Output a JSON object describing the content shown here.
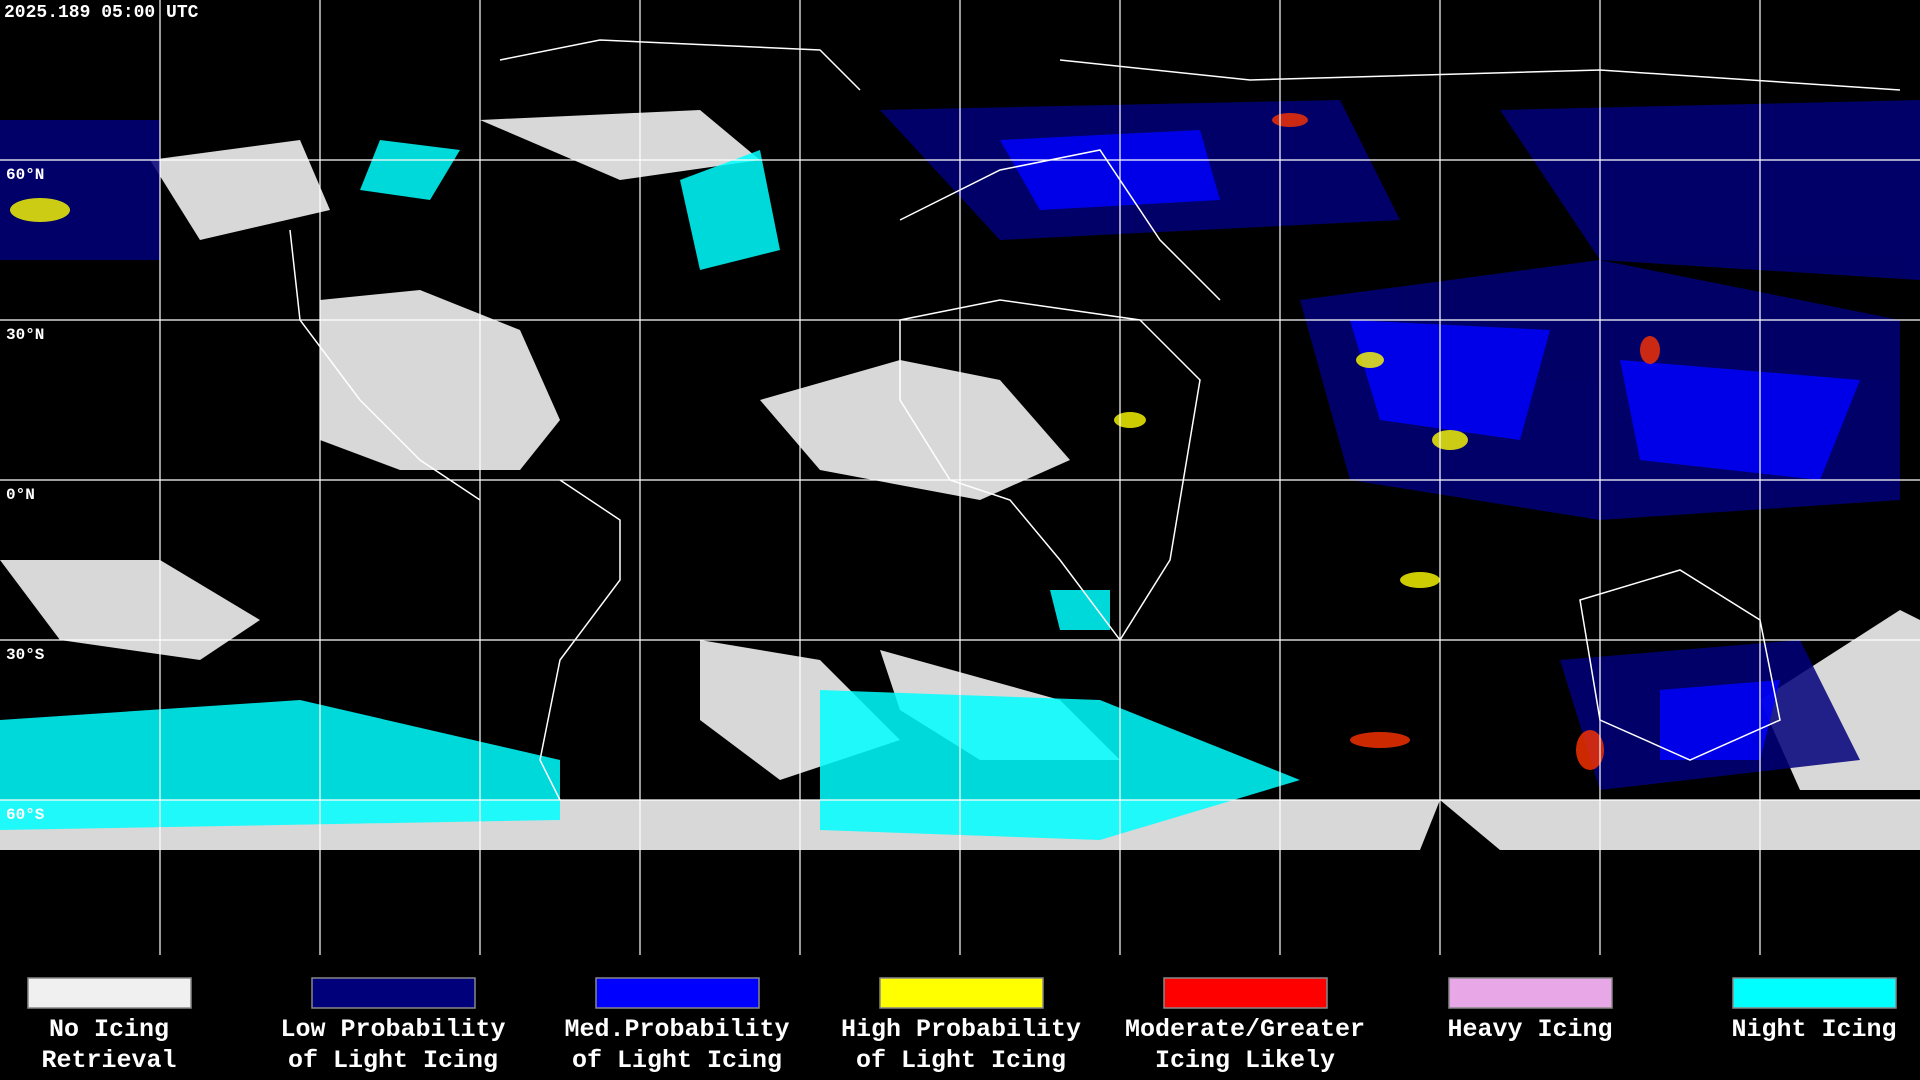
{
  "timestamp": "2025.189 05:00 UTC",
  "map": {
    "lat_labels": [
      "60°N",
      "30°N",
      "0°N",
      "30°S",
      "60°S"
    ]
  },
  "legend": [
    {
      "lines": [
        "No Icing",
        "Retrieval"
      ],
      "color": "#f0f0f0"
    },
    {
      "lines": [
        "Low Probability",
        "of Light Icing"
      ],
      "color": "#00007a"
    },
    {
      "lines": [
        "Med.Probability",
        "of Light Icing"
      ],
      "color": "#0000ff"
    },
    {
      "lines": [
        "High Probability",
        "of Light Icing"
      ],
      "color": "#ffff00"
    },
    {
      "lines": [
        "Moderate/Greater",
        "Icing Likely"
      ],
      "color": "#ff0000"
    },
    {
      "lines": [
        "Heavy Icing"
      ],
      "color": "#e8a8e8"
    },
    {
      "lines": [
        "Night Icing"
      ],
      "color": "#00ffff"
    }
  ]
}
